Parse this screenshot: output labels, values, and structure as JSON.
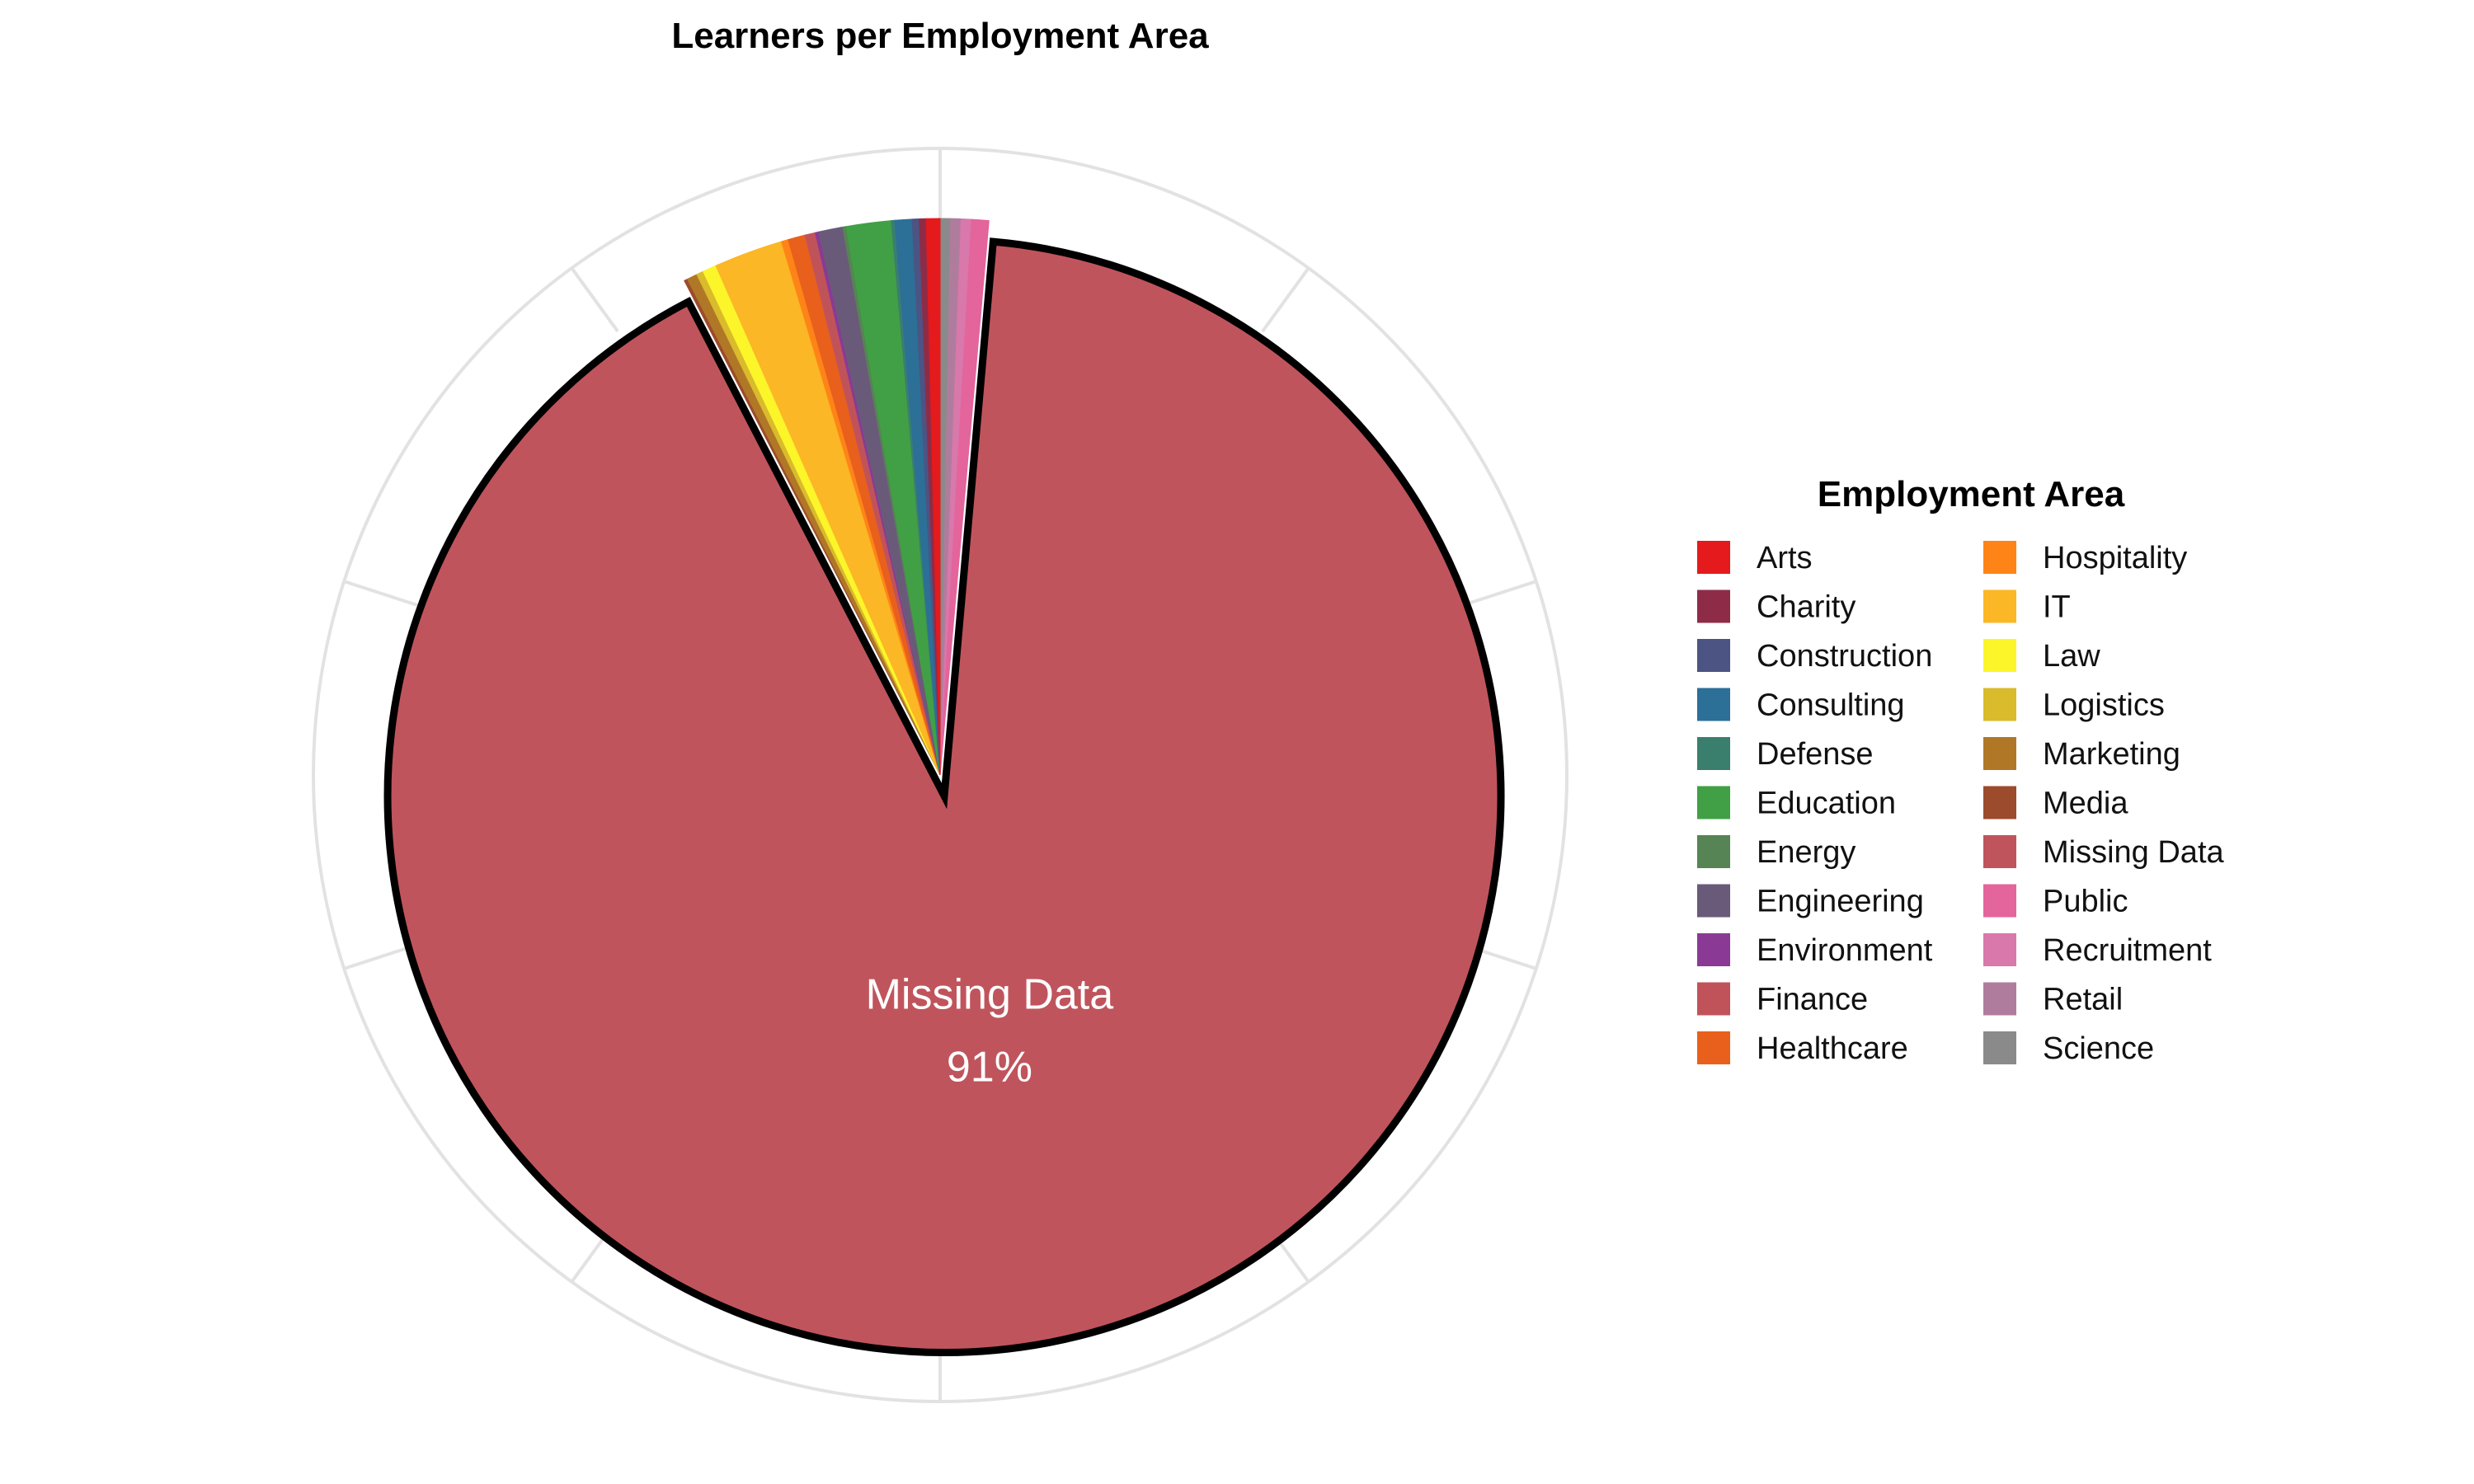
{
  "chart_data": {
    "type": "pie",
    "title": "Learners per Employment Area",
    "legend": {
      "title": "Employment Area",
      "placement": "right",
      "columns": 2
    },
    "slices": [
      {
        "name": "Arts",
        "value": 0.4,
        "color": "#e41a1c"
      },
      {
        "name": "Charity",
        "value": 0.2,
        "color": "#8e2c48"
      },
      {
        "name": "Construction",
        "value": 0.2,
        "color": "#4c5484"
      },
      {
        "name": "Consulting",
        "value": 0.5,
        "color": "#2c6f97"
      },
      {
        "name": "Defense",
        "value": 0.1,
        "color": "#3a7f6e"
      },
      {
        "name": "Education",
        "value": 1.3,
        "color": "#41a046"
      },
      {
        "name": "Energy",
        "value": 0.1,
        "color": "#568454"
      },
      {
        "name": "Engineering",
        "value": 0.7,
        "color": "#6a5a7a"
      },
      {
        "name": "Environment",
        "value": 0.1,
        "color": "#8a3a95"
      },
      {
        "name": "Finance",
        "value": 0.3,
        "color": "#c0535a"
      },
      {
        "name": "Healthcare",
        "value": 0.5,
        "color": "#e8601c"
      },
      {
        "name": "Hospitality",
        "value": 0.2,
        "color": "#ff8418"
      },
      {
        "name": "IT",
        "value": 2.0,
        "color": "#fbb725"
      },
      {
        "name": "Law",
        "value": 0.4,
        "color": "#fcf52a"
      },
      {
        "name": "Logistics",
        "value": 0.2,
        "color": "#d9bb2c"
      },
      {
        "name": "Marketing",
        "value": 0.3,
        "color": "#b07826"
      },
      {
        "name": "Media",
        "value": 0.1,
        "color": "#9c4b2c"
      },
      {
        "name": "Missing Data",
        "value": 91.0,
        "color": "#c0545c",
        "highlight": true,
        "label": "Missing Data",
        "percent_label": "91%"
      },
      {
        "name": "Public",
        "value": 0.5,
        "color": "#e4649c"
      },
      {
        "name": "Recruitment",
        "value": 0.3,
        "color": "#d878ab"
      },
      {
        "name": "Retail",
        "value": 0.3,
        "color": "#b07c9d"
      },
      {
        "name": "Science",
        "value": 0.3,
        "color": "#8a8a8a"
      }
    ],
    "start_angle_deg": 0,
    "direction": "clockwise",
    "grid": true
  }
}
